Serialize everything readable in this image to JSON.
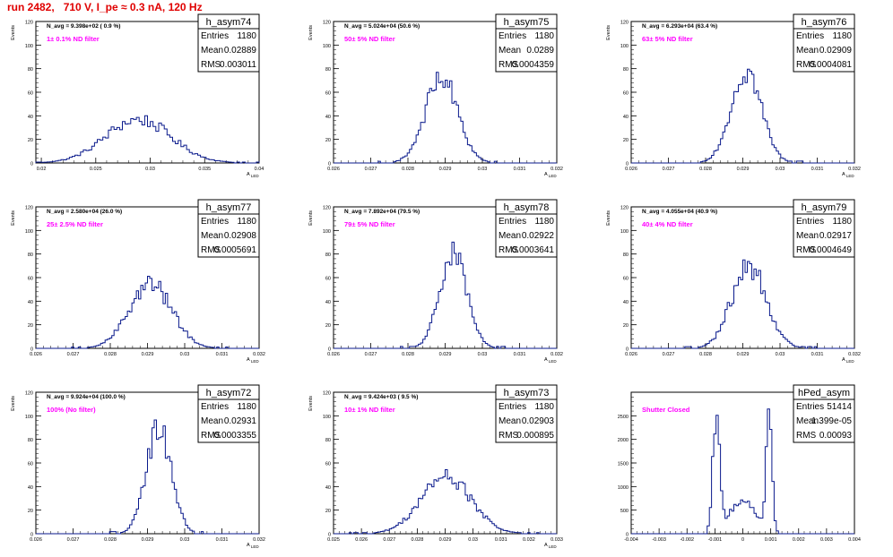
{
  "page_title": "run 2482,   710 V, I_pe ≈ 0.3 nA, 120 Hz",
  "colors": {
    "title": "#e00000",
    "annotation": "#ff00ff",
    "histogram": "#0a1a8c",
    "axis": "#000000"
  },
  "chart_data": [
    {
      "type": "histogram",
      "name": "h_asym74",
      "title": "N_avg = 9.398e+02 ( 0.9 %)",
      "annotation": "1± 0.1% ND filter",
      "stats": {
        "entries": "1180",
        "mean": "0.02889",
        "rms": "0.003011"
      },
      "xlabel": "A_LED",
      "ylabel": "Events",
      "xlim": [
        0.0195,
        0.04
      ],
      "ylim": [
        0,
        120
      ],
      "y_ticks": [
        0,
        20,
        40,
        60,
        80,
        100,
        120
      ],
      "x_tick_values": [
        0.02,
        0.025,
        0.03,
        0.035,
        0.04
      ],
      "x_tick_labels": [
        "0.02",
        "0.025",
        "0.03",
        "0.035",
        "0.04"
      ],
      "mean": 0.02889,
      "rms": 0.003011,
      "entries": 1180,
      "nbins": 80,
      "peak": 38
    },
    {
      "type": "histogram",
      "name": "h_asym75",
      "title": "N_avg = 5.024e+04 (50.6 %)",
      "annotation": "50± 5% ND filter",
      "stats": {
        "entries": "1180",
        "mean": "0.0289",
        "rms": "0.0004359"
      },
      "xlabel": "A_LED",
      "ylabel": "Events",
      "xlim": [
        0.026,
        0.032
      ],
      "ylim": [
        0,
        120
      ],
      "y_ticks": [
        0,
        20,
        40,
        60,
        80,
        100,
        120
      ],
      "x_tick_values": [
        0.026,
        0.027,
        0.028,
        0.029,
        0.03,
        0.031,
        0.032
      ],
      "x_tick_labels": [
        "0.026",
        "0.027",
        "0.028",
        "0.029",
        "0.03",
        "0.031",
        "0.032"
      ],
      "mean": 0.0289,
      "rms": 0.0004359,
      "entries": 1180,
      "nbins": 100,
      "peak": 74
    },
    {
      "type": "histogram",
      "name": "h_asym76",
      "title": "N_avg = 6.293e+04 (63.4 %)",
      "annotation": "63± 5% ND filter",
      "stats": {
        "entries": "1180",
        "mean": "0.02909",
        "rms": "0.0004081"
      },
      "xlabel": "A_LED",
      "ylabel": "Events",
      "xlim": [
        0.026,
        0.032
      ],
      "ylim": [
        0,
        120
      ],
      "y_ticks": [
        0,
        20,
        40,
        60,
        80,
        100,
        120
      ],
      "x_tick_values": [
        0.026,
        0.027,
        0.028,
        0.029,
        0.03,
        0.031,
        0.032
      ],
      "x_tick_labels": [
        "0.026",
        "0.027",
        "0.028",
        "0.029",
        "0.03",
        "0.031",
        "0.032"
      ],
      "mean": 0.02909,
      "rms": 0.0004081,
      "entries": 1180,
      "nbins": 100,
      "peak": 81
    },
    {
      "type": "histogram",
      "name": "h_asym77",
      "title": "N_avg = 2.580e+04 (26.0 %)",
      "annotation": "25± 2.5% ND filter",
      "stats": {
        "entries": "1180",
        "mean": "0.02908",
        "rms": "0.0005691"
      },
      "xlabel": "A_LED",
      "ylabel": "Events",
      "xlim": [
        0.026,
        0.032
      ],
      "ylim": [
        0,
        120
      ],
      "y_ticks": [
        0,
        20,
        40,
        60,
        80,
        100,
        120
      ],
      "x_tick_values": [
        0.026,
        0.027,
        0.028,
        0.029,
        0.03,
        0.031,
        0.032
      ],
      "x_tick_labels": [
        "0.026",
        "0.027",
        "0.028",
        "0.029",
        "0.03",
        "0.031",
        "0.032"
      ],
      "mean": 0.02908,
      "rms": 0.0005691,
      "entries": 1180,
      "nbins": 100,
      "peak": 56
    },
    {
      "type": "histogram",
      "name": "h_asym78",
      "title": "N_avg = 7.892e+04 (79.5 %)",
      "annotation": "79± 5% ND filter",
      "stats": {
        "entries": "1180",
        "mean": "0.02922",
        "rms": "0.0003641"
      },
      "xlabel": "A_LED",
      "ylabel": "Events",
      "xlim": [
        0.026,
        0.032
      ],
      "ylim": [
        0,
        120
      ],
      "y_ticks": [
        0,
        20,
        40,
        60,
        80,
        100,
        120
      ],
      "x_tick_values": [
        0.026,
        0.027,
        0.028,
        0.029,
        0.03,
        0.031,
        0.032
      ],
      "x_tick_labels": [
        "0.026",
        "0.027",
        "0.028",
        "0.029",
        "0.03",
        "0.031",
        "0.032"
      ],
      "mean": 0.02922,
      "rms": 0.0003641,
      "entries": 1180,
      "nbins": 100,
      "peak": 81
    },
    {
      "type": "histogram",
      "name": "h_asym79",
      "title": "N_avg = 4.055e+04 (40.9 %)",
      "annotation": "40± 4% ND filter",
      "stats": {
        "entries": "1180",
        "mean": "0.02917",
        "rms": "0.0004649"
      },
      "xlabel": "A_LED",
      "ylabel": "Events",
      "xlim": [
        0.026,
        0.032
      ],
      "ylim": [
        0,
        120
      ],
      "y_ticks": [
        0,
        20,
        40,
        60,
        80,
        100,
        120
      ],
      "x_tick_values": [
        0.026,
        0.027,
        0.028,
        0.029,
        0.03,
        0.031,
        0.032
      ],
      "x_tick_labels": [
        "0.026",
        "0.027",
        "0.028",
        "0.029",
        "0.03",
        "0.031",
        "0.032"
      ],
      "mean": 0.02917,
      "rms": 0.0004649,
      "entries": 1180,
      "nbins": 100,
      "peak": 72
    },
    {
      "type": "histogram",
      "name": "h_asym72",
      "title": "N_avg = 9.924e+04 (100.0 %)",
      "annotation": "100% (No filter)",
      "stats": {
        "entries": "1180",
        "mean": "0.02931",
        "rms": "0.0003355"
      },
      "xlabel": "A_LED",
      "ylabel": "Events",
      "xlim": [
        0.026,
        0.032
      ],
      "ylim": [
        0,
        120
      ],
      "y_ticks": [
        0,
        20,
        40,
        60,
        80,
        100,
        120
      ],
      "x_tick_values": [
        0.026,
        0.027,
        0.028,
        0.029,
        0.03,
        0.031,
        0.032
      ],
      "x_tick_labels": [
        "0.026",
        "0.027",
        "0.028",
        "0.029",
        "0.03",
        "0.031",
        "0.032"
      ],
      "mean": 0.02931,
      "rms": 0.0003355,
      "entries": 1180,
      "nbins": 100,
      "peak": 93
    },
    {
      "type": "histogram",
      "name": "h_asym73",
      "title": "N_avg = 9.424e+03 ( 9.5 %)",
      "annotation": "10± 1% ND filter",
      "stats": {
        "entries": "1180",
        "mean": "0.02903",
        "rms": "0.000895"
      },
      "xlabel": "A_LED",
      "ylabel": "Events",
      "xlim": [
        0.025,
        0.033
      ],
      "ylim": [
        0,
        120
      ],
      "y_ticks": [
        0,
        20,
        40,
        60,
        80,
        100,
        120
      ],
      "x_tick_values": [
        0.025,
        0.026,
        0.027,
        0.028,
        0.029,
        0.03,
        0.031,
        0.032,
        0.033
      ],
      "x_tick_labels": [
        "0.025",
        "0.026",
        "0.027",
        "0.028",
        "0.029",
        "0.03",
        "0.031",
        "0.032",
        "0.033"
      ],
      "mean": 0.02903,
      "rms": 0.000895,
      "entries": 1180,
      "nbins": 100,
      "peak": 50
    },
    {
      "type": "histogram",
      "name": "hPed_asym",
      "title": "",
      "annotation": "Shutter Closed",
      "stats": {
        "entries": "51414",
        "mean": "1.399e-05",
        "rms": "0.00093"
      },
      "xlabel": "",
      "ylabel": "",
      "xlim": [
        -0.004,
        0.004
      ],
      "ylim": [
        0,
        3000
      ],
      "y_ticks": [
        0,
        500,
        1000,
        1500,
        2000,
        2500
      ],
      "x_tick_values": [
        -0.004,
        -0.003,
        -0.002,
        -0.001,
        0,
        0.001,
        0.002,
        0.003,
        0.004
      ],
      "x_tick_labels": [
        "-0.004",
        "-0.003",
        "-0.002",
        "-0.001",
        "0",
        "0.001",
        "0.002",
        "0.003",
        "0.004"
      ],
      "mean": 1.399e-05,
      "rms": 0.00093,
      "entries": 51414,
      "nbins": 100,
      "peak": 2850,
      "bimodal": true
    }
  ]
}
